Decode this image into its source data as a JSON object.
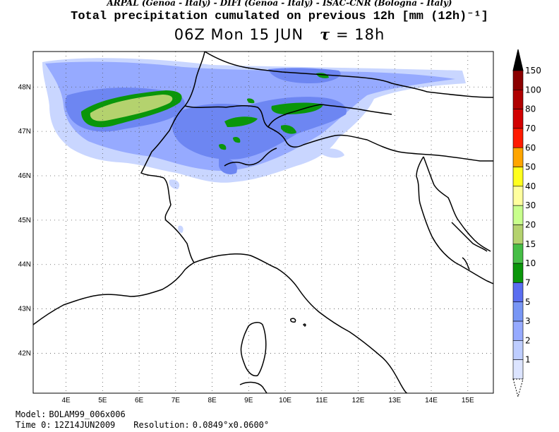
{
  "header": {
    "credits": "ARPAL (Genoa - Italy)  -  DIFI (Genoa - Italy)  -  ISAC-CNR (Bologna - Italy)",
    "title": "Total precipitation cumulated on previous 12h [mm (12h)⁻¹]",
    "validity": "06Z Mon 15 JUN",
    "tau_symbol": "τ",
    "tau_value": "= 18h"
  },
  "map": {
    "lon_labels": [
      "4E",
      "5E",
      "6E",
      "7E",
      "8E",
      "9E",
      "10E",
      "11E",
      "12E",
      "13E",
      "14E",
      "15E"
    ],
    "lat_labels": [
      "48N",
      "47N",
      "46N",
      "45N",
      "44N",
      "43N",
      "42N"
    ],
    "lon_values": [
      4,
      5,
      6,
      7,
      8,
      9,
      10,
      11,
      12,
      13,
      14,
      15
    ],
    "lat_values": [
      48,
      47,
      46,
      45,
      44,
      43,
      42
    ],
    "lon_range": [
      3.1,
      15.7
    ],
    "lat_range": [
      41.1,
      48.8
    ],
    "grid": "dotted"
  },
  "colorbar": {
    "levels": [
      "150",
      "100",
      "80",
      "70",
      "60",
      "50",
      "40",
      "30",
      "20",
      "15",
      "10",
      "7",
      "5",
      "3",
      "2",
      "1"
    ],
    "colors": [
      "#8B0000",
      "#B00000",
      "#D20000",
      "#FF1A00",
      "#FFA500",
      "#FFFF1E",
      "#FFFF9E",
      "#C8FF8C",
      "#B4D26E",
      "#46BE46",
      "#0A960A",
      "#5A6EF0",
      "#7896F5",
      "#96AAFF",
      "#BECDFF",
      "#DCE4FF"
    ],
    "top_color": "#000000"
  },
  "footer": {
    "model_label": "Model:",
    "model_value": "BOLAM99_006x006",
    "time_label": "Time 0:",
    "time_value": "12Z14JUN2009",
    "resolution_label": "Resolution:",
    "resolution_value": "0.0849°x0.0600°"
  }
}
